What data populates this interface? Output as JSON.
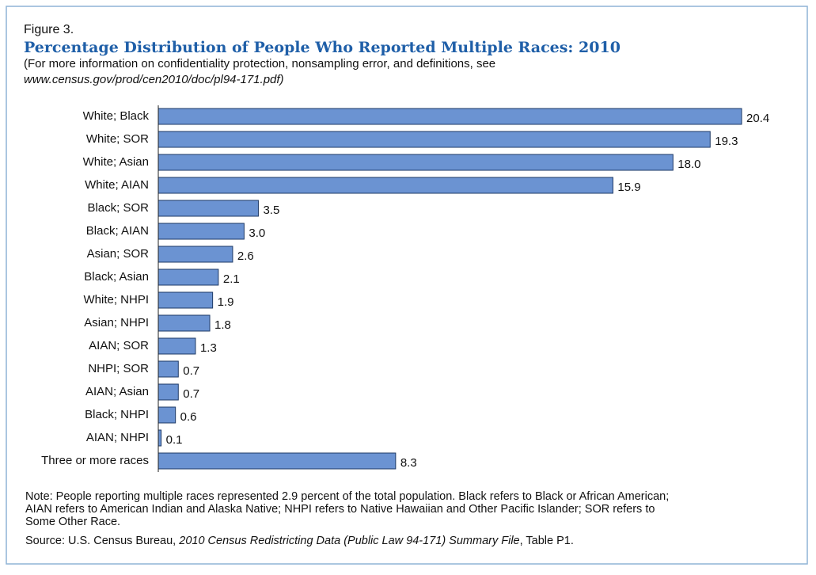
{
  "chart_data": {
    "type": "bar",
    "orientation": "horizontal",
    "figure_label": "Figure 3.",
    "title": "Percentage Distribution of People Who Reported Multiple Races: 2010",
    "subtitle": [
      "(For more information on confidentiality protection, nonsampling error, and definitions, see",
      "www.census.gov/prod/cen2010/doc/pl94-171.pdf)"
    ],
    "categories": [
      "White; Black",
      "White; SOR",
      "White; Asian",
      "White; AIAN",
      "Black; SOR",
      "Black; AIAN",
      "Asian; SOR",
      "Black; Asian",
      "White; NHPI",
      "Asian; NHPI",
      "AIAN; SOR",
      "NHPI; SOR",
      "AIAN; Asian",
      "Black; NHPI",
      "AIAN; NHPI",
      "Three or more races"
    ],
    "values": [
      20.4,
      19.3,
      18.0,
      15.9,
      3.5,
      3.0,
      2.6,
      2.1,
      1.9,
      1.8,
      1.3,
      0.7,
      0.7,
      0.6,
      0.1,
      8.3
    ],
    "value_labels": [
      "20.4",
      "19.3",
      "18.0",
      "15.9",
      "3.5",
      "3.0",
      "2.6",
      "2.1",
      "1.9",
      "1.8",
      "1.3",
      "0.7",
      "0.7",
      "0.6",
      "0.1",
      "8.3"
    ],
    "color": "#6b93d2",
    "note": [
      "Note: People reporting multiple races represented 2.9 percent of the total population. Black refers to Black or African American;",
      "AIAN refers to American Indian and Alaska Native; NHPI refers to Native Hawaiian and Other Pacific Islander; SOR refers to",
      "Some Other Race."
    ],
    "source": [
      "Source: U.S. Census Bureau, ",
      "2010 Census Redistricting Data (Public Law 94-171) Summary File",
      ", Table P1."
    ]
  }
}
